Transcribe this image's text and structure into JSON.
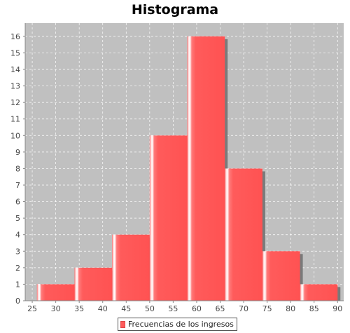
{
  "chart_data": {
    "type": "bar",
    "title": "Histograma",
    "xlabel": "",
    "ylabel": "",
    "xlim": [
      23.5,
      91.3
    ],
    "ylim": [
      0,
      16.8
    ],
    "x_ticks": [
      25,
      30,
      35,
      40,
      45,
      50,
      55,
      60,
      65,
      70,
      75,
      80,
      85,
      90
    ],
    "y_ticks": [
      0,
      1,
      2,
      3,
      4,
      5,
      6,
      7,
      8,
      9,
      10,
      11,
      12,
      13,
      14,
      15,
      16
    ],
    "bins": [
      {
        "start": 26,
        "end": 34,
        "value": 1
      },
      {
        "start": 34,
        "end": 42,
        "value": 2
      },
      {
        "start": 42,
        "end": 50,
        "value": 4
      },
      {
        "start": 50,
        "end": 58,
        "value": 10
      },
      {
        "start": 58,
        "end": 66,
        "value": 16
      },
      {
        "start": 66,
        "end": 74,
        "value": 8
      },
      {
        "start": 74,
        "end": 82,
        "value": 3
      },
      {
        "start": 82,
        "end": 90,
        "value": 1
      }
    ],
    "series": [
      {
        "name": "Frecuencias de los ingresos",
        "values": [
          1,
          2,
          4,
          10,
          16,
          8,
          3,
          1
        ]
      }
    ],
    "grid": true,
    "legend_position": "bottom",
    "colors": {
      "bar": "#ff5b5b",
      "plot_background": "#c0c0c0",
      "grid": "#ffffff",
      "shadow": "#7a7a7a"
    }
  }
}
